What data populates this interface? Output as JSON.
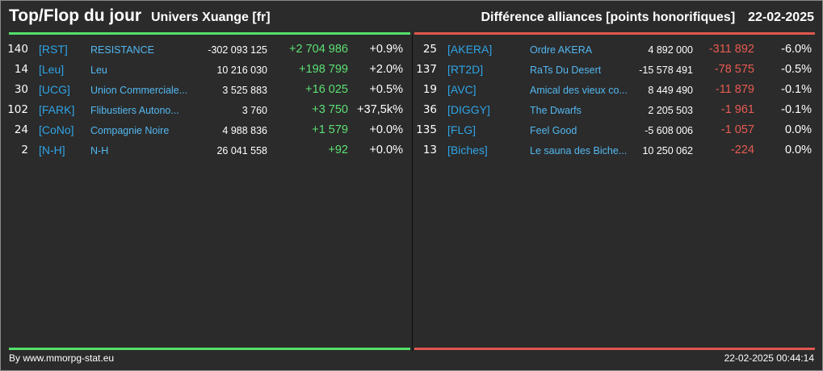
{
  "header": {
    "title": "Top/Flop du jour",
    "universe": "Univers Xuange [fr]",
    "stat_label": "Différence alliances [points honorifiques]",
    "date": "22-02-2025"
  },
  "colors": {
    "top_accent": "#54e06b",
    "flop_accent": "#e0574e",
    "tag_color": "#2fa4e7",
    "positive": "#5ce074",
    "negative": "#e85b52"
  },
  "top": [
    {
      "rank": "140",
      "tag": "[RST]",
      "name": "RESISTANCE",
      "points": "-302 093 125",
      "diff": "+2 704 986",
      "pct": "+0.9%"
    },
    {
      "rank": "14",
      "tag": "[Leu]",
      "name": "Leu",
      "points": "10 216 030",
      "diff": "+198 799",
      "pct": "+2.0%"
    },
    {
      "rank": "30",
      "tag": "[UCG]",
      "name": "Union Commerciale...",
      "points": "3 525 883",
      "diff": "+16 025",
      "pct": "+0.5%"
    },
    {
      "rank": "102",
      "tag": "[FARK]",
      "name": "Flibustiers Autono...",
      "points": "3 760",
      "diff": "+3 750",
      "pct": "+37,5k%"
    },
    {
      "rank": "24",
      "tag": "[CoNo]",
      "name": "Compagnie Noire",
      "points": "4 988 836",
      "diff": "+1 579",
      "pct": "+0.0%"
    },
    {
      "rank": "2",
      "tag": "[N-H]",
      "name": "N-H",
      "points": "26 041 558",
      "diff": "+92",
      "pct": "+0.0%"
    }
  ],
  "flop": [
    {
      "rank": "25",
      "tag": "[AKERA]",
      "name": "Ordre AKERA",
      "points": "4 892 000",
      "diff": "-311 892",
      "pct": "-6.0%"
    },
    {
      "rank": "137",
      "tag": "[RT2D]",
      "name": "RaTs Du Desert",
      "points": "-15 578 491",
      "diff": "-78 575",
      "pct": "-0.5%"
    },
    {
      "rank": "19",
      "tag": "[AVC]",
      "name": "Amical des vieux co...",
      "points": "8 449 490",
      "diff": "-11 879",
      "pct": "-0.1%"
    },
    {
      "rank": "36",
      "tag": "[DIGGY]",
      "name": "The Dwarfs",
      "points": "2 205 503",
      "diff": "-1 961",
      "pct": "-0.1%"
    },
    {
      "rank": "135",
      "tag": "[FLG]",
      "name": "Feel Good",
      "points": "-5 608 006",
      "diff": "-1 057",
      "pct": "0.0%"
    },
    {
      "rank": "13",
      "tag": "[Biches]",
      "name": "Le sauna des Biche...",
      "points": "10 250 062",
      "diff": "-224",
      "pct": "0.0%"
    }
  ],
  "footer": {
    "source": "By www.mmorpg-stat.eu",
    "timestamp": "22-02-2025 00:44:14"
  }
}
